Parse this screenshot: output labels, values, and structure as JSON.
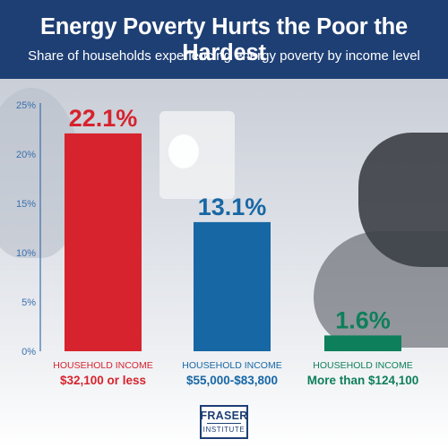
{
  "header": {
    "title": "Energy Poverty Hurts the Poor the Hardest",
    "subtitle": "Share of households experiencing energy poverty by income level"
  },
  "colors": {
    "header_bg": "#1e3f74",
    "axis": "#3a6fae"
  },
  "chart_data": {
    "type": "bar",
    "title": "Energy Poverty Hurts the Poor the Hardest",
    "subtitle": "Share of households experiencing energy poverty by income level",
    "xlabel": "",
    "ylabel": "",
    "ylim": [
      0,
      25
    ],
    "yticks": [
      "0%",
      "5%",
      "10%",
      "15%",
      "20%",
      "25%"
    ],
    "grid": false,
    "categories": [
      {
        "caption": "HOUSEHOLD INCOME",
        "range": "$32,100 or less",
        "value": 22.1,
        "label": "22.1%",
        "color": "#d6232d"
      },
      {
        "caption": "HOUSEHOLD INCOME",
        "range": "$55,000-$83,800",
        "value": 13.1,
        "label": "13.1%",
        "color": "#1767a5"
      },
      {
        "caption": "HOUSEHOLD INCOME",
        "range": "More than $124,100",
        "value": 1.6,
        "label": "1.6%",
        "color": "#0e7f5b"
      }
    ]
  },
  "logo": {
    "line1": "FRASER",
    "line2": "INSTITUTE"
  }
}
